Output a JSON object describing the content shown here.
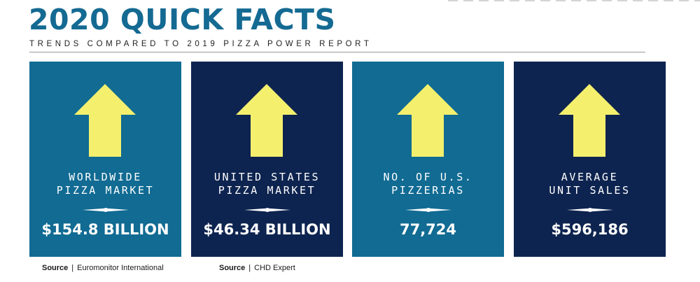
{
  "header": {
    "title": "2020 QUICK FACTS",
    "subtitle": "TRENDS COMPARED TO 2019 PIZZA POWER REPORT"
  },
  "colors": {
    "title": "#146a92",
    "teal_card": "#116b93",
    "navy_card": "#0e2450",
    "arrow": "#f4f06e"
  },
  "cards": [
    {
      "label_line1": "WORLDWIDE",
      "label_line2": "PIZZA MARKET",
      "value": "$154.8 BILLION",
      "trend_icon": "up-arrow-icon"
    },
    {
      "label_line1": "UNITED STATES",
      "label_line2": "PIZZA MARKET",
      "value": "$46.34 BILLION",
      "trend_icon": "up-arrow-icon"
    },
    {
      "label_line1": "NO. OF U.S.",
      "label_line2": "PIZZERIAS",
      "value": "77,724",
      "trend_icon": "up-arrow-icon"
    },
    {
      "label_line1": "AVERAGE",
      "label_line2": "UNIT SALES",
      "value": "$596,186",
      "trend_icon": "up-arrow-icon"
    }
  ],
  "sources": [
    {
      "key": "Source",
      "separator": "|",
      "name": "Euromonitor International"
    },
    {
      "key": "Source",
      "separator": "|",
      "name": "CHD Expert"
    }
  ]
}
